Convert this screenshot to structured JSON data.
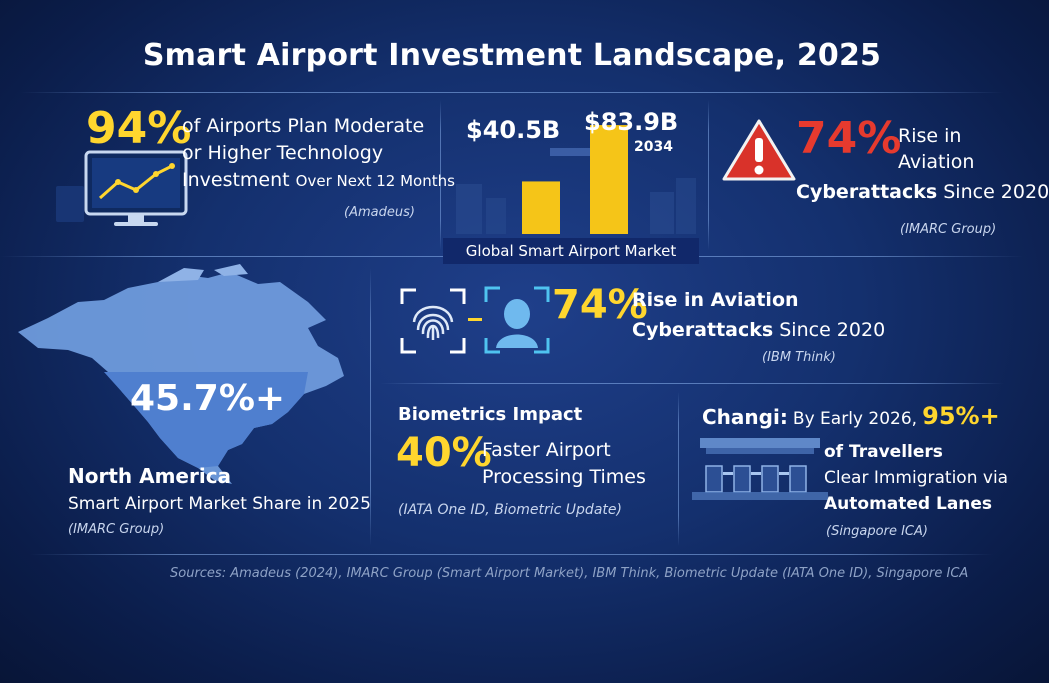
{
  "title": "Smart Airport Investment Landscape, 2025",
  "colors": {
    "accent_yellow": "#ffd62e",
    "alert_red": "#d9322a",
    "background": "#14306e"
  },
  "amadeus": {
    "percent": "94%",
    "line1": "of Airports Plan Moderate",
    "line2": "or Higher Technology",
    "line3": "Investment",
    "line3_small": "Over Next 12 Months",
    "source": "(Amadeus)",
    "icon": "monitor-chart-icon"
  },
  "market": {
    "value_2025": "$40.5B",
    "value_2034": "$83.9B",
    "year_2034": "2034",
    "label": "Global Smart Airport Market"
  },
  "cyber_top": {
    "percent": "74%",
    "line1": "Rise in",
    "line2": "Aviation",
    "line3": "Cyberattacks",
    "line3_rest": "Since 2020",
    "source": "(IMARC Group)",
    "icon": "warning-icon"
  },
  "north_america": {
    "share": "45.7%+",
    "region": "North America",
    "line2": "Smart Airport Market Share",
    "line2_rest": "in 2025",
    "source": "(IMARC Group)",
    "icon": "north-america-map-icon"
  },
  "cyber_mid": {
    "percent": "74%",
    "line1": "Rise in Aviation",
    "line2": "Cyberattacks",
    "line2_rest": "Since 2020",
    "source": "(IBM Think)",
    "icons": [
      "fingerprint-icon",
      "face-scan-icon"
    ]
  },
  "biometrics": {
    "heading": "Biometrics Impact",
    "percent": "40%",
    "line1": "Faster Airport",
    "line2": "Processing Times",
    "source": "(IATA One ID, Biometric Update)"
  },
  "changi": {
    "name": "Changi:",
    "intro": "By Early 2026,",
    "percent": "95%+",
    "line1": "of Travellers",
    "line2": "Clear Immigration via",
    "line3": "Automated Lanes",
    "source": "(Singapore ICA)",
    "icon": "automated-gates-icon"
  },
  "sources": "Sources: Amadeus (2024), IMARC Group (Smart Airport Market), IBM Think, Biometric Update (IATA One ID), Singapore ICA",
  "chart_data": {
    "type": "bar",
    "categories": [
      "",
      "2034"
    ],
    "values": [
      40.5,
      83.9
    ],
    "data_labels": [
      "$40.5B",
      "$83.9B"
    ],
    "title": "Global Smart Airport Market",
    "ylim": [
      0,
      100
    ]
  }
}
